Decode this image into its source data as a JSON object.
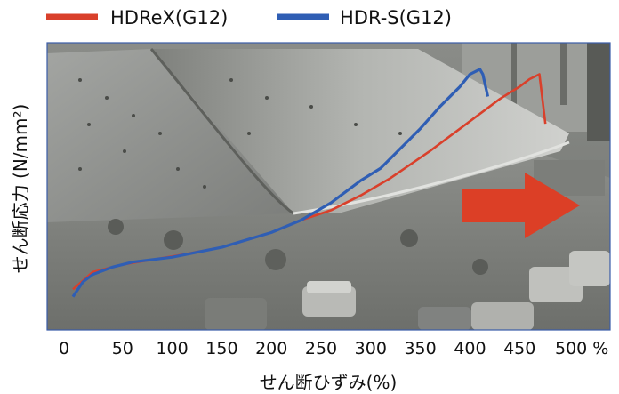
{
  "chart_data": {
    "type": "line",
    "xlabel": "せん断ひずみ(%)",
    "ylabel": "せん断応力 (N/mm²)",
    "x_ticks": [
      "0",
      "50",
      "100",
      "150",
      "200",
      "250",
      "300",
      "350",
      "400",
      "450",
      "500 %"
    ],
    "xlim": [
      0,
      500
    ],
    "ylim": [
      0,
      1
    ],
    "grid": false,
    "legend_position": "top",
    "background": "photo of a deformed rubber bearing specimen in a test rig",
    "series": [
      {
        "name": "HDReX(G12)",
        "color": "#d9402b",
        "x": [
          0,
          20,
          50,
          80,
          110,
          150,
          200,
          230,
          260,
          290,
          320,
          360,
          400,
          430,
          450,
          460,
          470,
          476
        ],
        "y": [
          0.06,
          0.13,
          0.16,
          0.18,
          0.2,
          0.23,
          0.29,
          0.34,
          0.38,
          0.44,
          0.51,
          0.62,
          0.74,
          0.83,
          0.88,
          0.91,
          0.93,
          0.73
        ]
      },
      {
        "name": "HDR-S(G12)",
        "color": "#2f5eb4",
        "x": [
          0,
          10,
          20,
          40,
          60,
          100,
          150,
          200,
          230,
          260,
          290,
          310,
          330,
          350,
          370,
          390,
          400,
          410,
          413,
          418
        ],
        "y": [
          0.03,
          0.09,
          0.12,
          0.15,
          0.17,
          0.19,
          0.23,
          0.29,
          0.34,
          0.41,
          0.5,
          0.55,
          0.63,
          0.71,
          0.8,
          0.88,
          0.93,
          0.95,
          0.93,
          0.84
        ]
      }
    ],
    "annotation": "red arrow pointing right"
  }
}
